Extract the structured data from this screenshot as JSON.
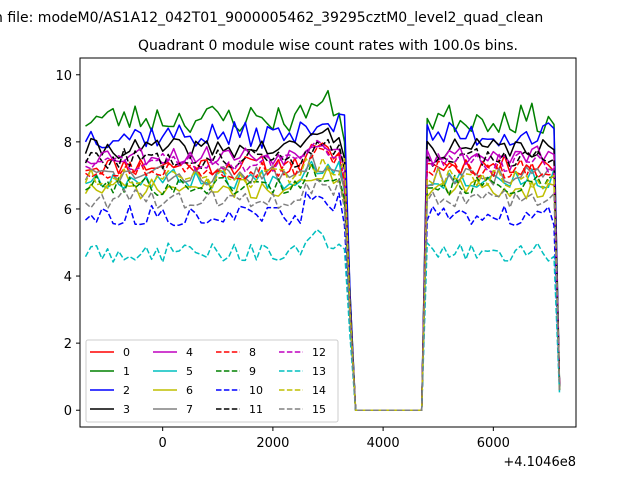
{
  "chart_data": {
    "type": "line",
    "suptitle": "n file: modeM0/AS1A12_042T01_9000005462_39295cztM0_level2_quad_clean",
    "title": "Quadrant 0 module wise count rates with 100.0s bins.",
    "xlabel": "",
    "ylabel": "",
    "x_offset_label": "+4.1046e8",
    "xlim": [
      -1500,
      7500
    ],
    "ylim": [
      -0.5,
      10.5
    ],
    "x_ticks": [
      0,
      2000,
      4000,
      6000
    ],
    "y_ticks": [
      0,
      2,
      4,
      6,
      8,
      10
    ],
    "grid": false,
    "legend_placement": "lower-left",
    "legend_columns": 4,
    "segments": {
      "first": {
        "start": -1400,
        "end": 3200
      },
      "drop": [
        3300,
        3400,
        3500
      ],
      "gap": {
        "start": 3600,
        "end": 4700
      },
      "second": {
        "start": 4800,
        "end": 7200
      }
    },
    "series": [
      {
        "name": "0",
        "color": "#ff0000",
        "dash": "solid",
        "mean": 7.3,
        "noise": 0.3,
        "seed": 11,
        "drop_values": [
          6.5,
          3.0,
          0.0
        ],
        "last_value": 0.8
      },
      {
        "name": "1",
        "color": "#008000",
        "dash": "solid",
        "mean": 8.7,
        "noise": 0.45,
        "seed": 23,
        "drop_values": [
          8.0,
          3.5,
          0.0
        ],
        "last_value": 0.8
      },
      {
        "name": "2",
        "color": "#0000ff",
        "dash": "solid",
        "mean": 8.2,
        "noise": 0.4,
        "seed": 37,
        "drop_values": [
          8.8,
          3.5,
          0.0
        ],
        "last_value": 0.7
      },
      {
        "name": "3",
        "color": "#000000",
        "dash": "solid",
        "mean": 7.8,
        "noise": 0.3,
        "seed": 41,
        "drop_values": [
          7.5,
          3.2,
          0.0
        ],
        "last_value": 0.7
      },
      {
        "name": "4",
        "color": "#bf00bf",
        "dash": "solid",
        "mean": 7.6,
        "noise": 0.3,
        "seed": 53,
        "drop_values": [
          7.2,
          3.0,
          0.0
        ],
        "last_value": 0.7
      },
      {
        "name": "5",
        "color": "#00bfbf",
        "dash": "solid",
        "mean": 6.9,
        "noise": 0.3,
        "seed": 67,
        "drop_values": [
          6.5,
          2.8,
          0.0
        ],
        "last_value": 0.6
      },
      {
        "name": "6",
        "color": "#bfbf00",
        "dash": "solid",
        "mean": 6.6,
        "noise": 0.3,
        "seed": 71,
        "drop_values": [
          6.2,
          2.8,
          0.0
        ],
        "last_value": 0.6
      },
      {
        "name": "7",
        "color": "#808080",
        "dash": "solid",
        "mean": 7.0,
        "noise": 0.3,
        "seed": 83,
        "drop_values": [
          6.6,
          2.9,
          0.0
        ],
        "last_value": 0.7
      },
      {
        "name": "8",
        "color": "#ff0000",
        "dash": "dashed",
        "mean": 7.2,
        "noise": 0.3,
        "seed": 97,
        "drop_values": [
          6.8,
          3.0,
          0.0
        ],
        "last_value": 0.7
      },
      {
        "name": "9",
        "color": "#008000",
        "dash": "dashed",
        "mean": 6.7,
        "noise": 0.3,
        "seed": 101,
        "drop_values": [
          6.3,
          2.8,
          0.0
        ],
        "last_value": 0.6
      },
      {
        "name": "10",
        "color": "#0000ff",
        "dash": "dashed",
        "mean": 5.8,
        "noise": 0.3,
        "seed": 113,
        "drop_values": [
          5.5,
          2.5,
          0.0
        ],
        "last_value": 0.6
      },
      {
        "name": "11",
        "color": "#000000",
        "dash": "dashed",
        "mean": 7.5,
        "noise": 0.3,
        "seed": 127,
        "drop_values": [
          7.2,
          3.1,
          0.0
        ],
        "last_value": 0.7
      },
      {
        "name": "12",
        "color": "#bf00bf",
        "dash": "dashed",
        "mean": 7.4,
        "noise": 0.3,
        "seed": 131,
        "drop_values": [
          7.0,
          3.0,
          0.0
        ],
        "last_value": 0.7
      },
      {
        "name": "13",
        "color": "#00bfbf",
        "dash": "dashed",
        "mean": 4.7,
        "noise": 0.3,
        "seed": 149,
        "drop_values": [
          4.8,
          2.2,
          0.0
        ],
        "last_value": 0.5
      },
      {
        "name": "14",
        "color": "#bfbf00",
        "dash": "dashed",
        "mean": 6.9,
        "noise": 0.3,
        "seed": 151,
        "drop_values": [
          7.5,
          3.0,
          0.0
        ],
        "last_value": 0.6
      },
      {
        "name": "15",
        "color": "#808080",
        "dash": "dashed",
        "mean": 6.3,
        "noise": 0.3,
        "seed": 163,
        "drop_values": [
          6.0,
          2.7,
          0.0
        ],
        "last_value": 0.6
      }
    ]
  }
}
